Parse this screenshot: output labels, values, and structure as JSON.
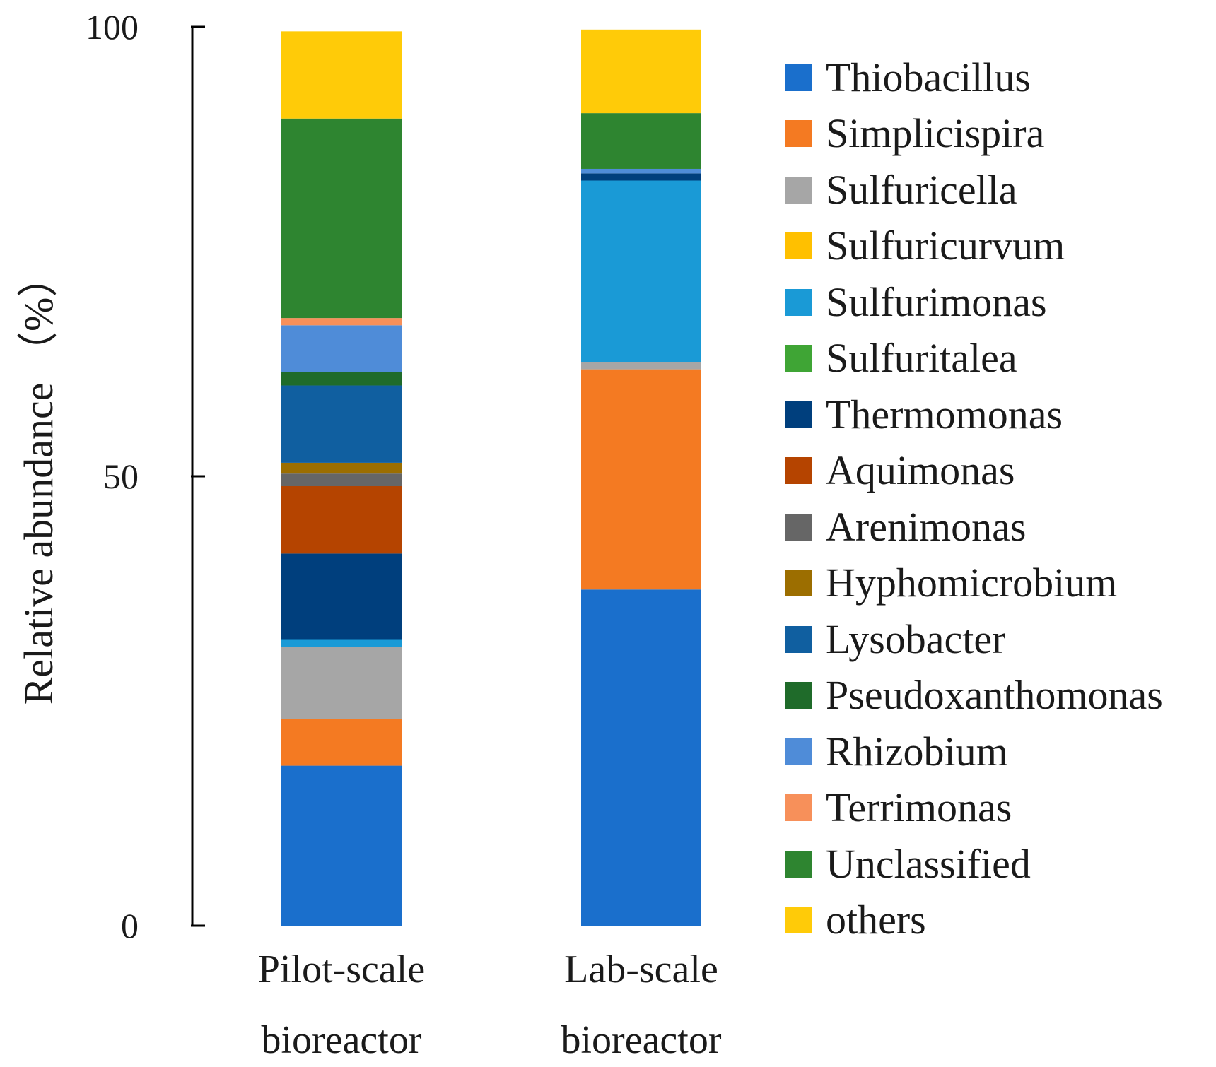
{
  "chart_data": {
    "type": "bar",
    "stacked": true,
    "title": "",
    "ylabel": "Relative abundance （%）",
    "xlabel": "",
    "ylim": [
      0,
      100
    ],
    "yticks": [
      "0",
      "50",
      "100"
    ],
    "categories": [
      [
        "Pilot-scale",
        "bioreactor"
      ],
      [
        "Lab-scale",
        "bioreactor"
      ]
    ],
    "legend_position": "right",
    "series": [
      {
        "name": "Thiobacillus",
        "color": "#1a6fcc",
        "values": [
          17.8,
          37.4
        ]
      },
      {
        "name": "Simplicispira",
        "color": "#f47a22",
        "values": [
          5.2,
          24.5
        ]
      },
      {
        "name": "Sulfuricella",
        "color": "#a6a6a6",
        "values": [
          8.0,
          0.8
        ]
      },
      {
        "name": "Sulfuricurvum",
        "color": "#ffc000",
        "values": [
          0.0,
          0.0
        ]
      },
      {
        "name": "Sulfurimonas",
        "color": "#1a9ad6",
        "values": [
          0.8,
          20.2
        ]
      },
      {
        "name": "Sulfuritalea",
        "color": "#3fa535",
        "values": [
          0.0,
          0.0
        ]
      },
      {
        "name": "Thermomonas",
        "color": "#003f7d",
        "values": [
          9.6,
          0.8
        ]
      },
      {
        "name": "Aquimonas",
        "color": "#b54400",
        "values": [
          7.5,
          0.0
        ]
      },
      {
        "name": "Arenimonas",
        "color": "#666666",
        "values": [
          1.4,
          0.0
        ]
      },
      {
        "name": "Hyphomicrobium",
        "color": "#9c6e00",
        "values": [
          1.2,
          0.0
        ]
      },
      {
        "name": "Lysobacter",
        "color": "#105fa0",
        "values": [
          8.6,
          0.0
        ]
      },
      {
        "name": "Pseudoxanthomonas",
        "color": "#1f6b2a",
        "values": [
          1.5,
          0.0
        ]
      },
      {
        "name": "Rhizobium",
        "color": "#4f8cd8",
        "values": [
          5.2,
          0.5
        ]
      },
      {
        "name": "Terrimonas",
        "color": "#f7905a",
        "values": [
          0.8,
          0.0
        ]
      },
      {
        "name": "Unclassified",
        "color": "#2e8530",
        "values": [
          22.2,
          6.2
        ]
      },
      {
        "name": "others",
        "color": "#ffcb08",
        "values": [
          9.7,
          9.3
        ]
      }
    ]
  }
}
